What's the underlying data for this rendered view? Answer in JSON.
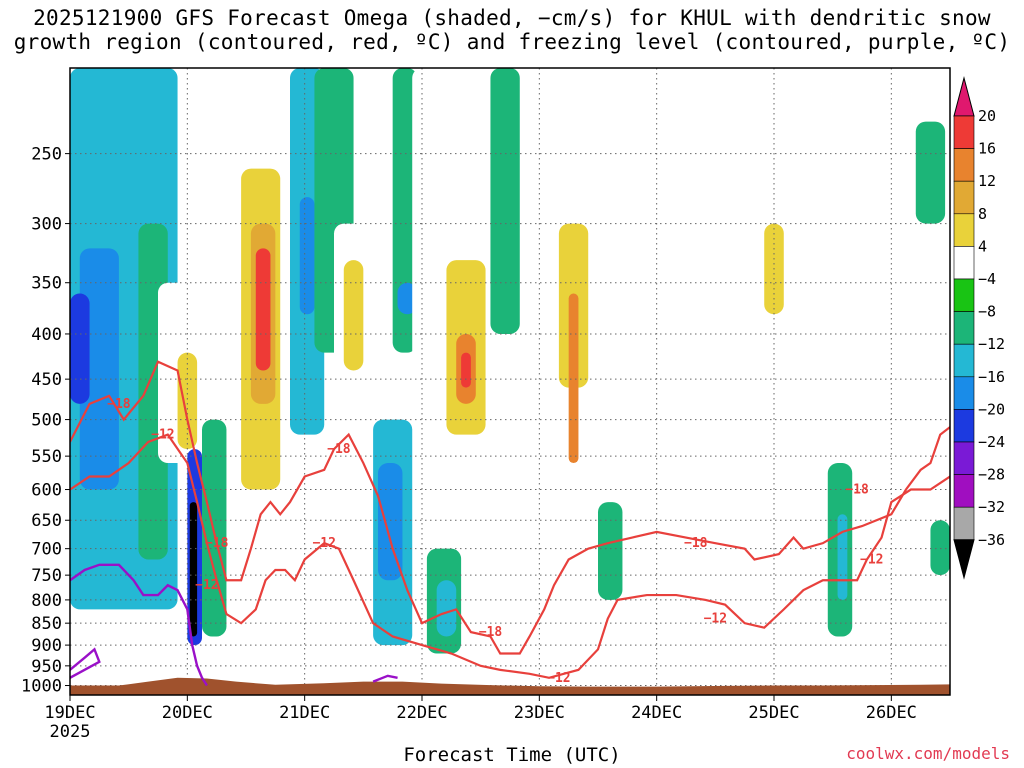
{
  "title": {
    "line1": "2025121900 GFS Forecast Omega (shaded, −cm/s) for KHUL with dendritic snow",
    "line2": "growth region (contoured, red, ºC) and freezing level (contoured, purple, ºC)"
  },
  "credit": "coolwx.com/models",
  "colors": {
    "contour_red": "#e8403c",
    "contour_purple": "#9a10c8",
    "terrain": "#a0522d"
  },
  "chart_data": {
    "type": "heatmap",
    "title": "2025121900 GFS Forecast Omega (shaded, −cm/s) for KHUL with dendritic snow growth region (contoured, red, ºC) and freezing level (contoured, purple, ºC)",
    "xlabel": "Forecast Time (UTC)",
    "ylabel": "",
    "x_ticks": [
      {
        "label": "19DEC",
        "sublabel": "2025",
        "hour": 0
      },
      {
        "label": "20DEC",
        "hour": 24
      },
      {
        "label": "21DEC",
        "hour": 48
      },
      {
        "label": "22DEC",
        "hour": 72
      },
      {
        "label": "23DEC",
        "hour": 96
      },
      {
        "label": "24DEC",
        "hour": 120
      },
      {
        "label": "25DEC",
        "hour": 144
      },
      {
        "label": "26DEC",
        "hour": 168
      }
    ],
    "xlim": [
      0,
      180
    ],
    "y_ticks": [
      "250",
      "300",
      "350",
      "400",
      "450",
      "500",
      "550",
      "600",
      "650",
      "700",
      "750",
      "800",
      "850",
      "900",
      "950",
      "1000"
    ],
    "ylim": [
      1025,
      200
    ],
    "colorbar": {
      "labels": [
        "20",
        "16",
        "12",
        "8",
        "4",
        "−4",
        "−8",
        "−12",
        "−16",
        "−20",
        "−24",
        "−28",
        "−32",
        "−36"
      ],
      "colors": [
        "#e0186e",
        "#ee3a36",
        "#e8832e",
        "#e1a934",
        "#e9d23a",
        "#ffffff",
        "#19c414",
        "#1cb578",
        "#24b8d4",
        "#1a8ce8",
        "#1c3ae0",
        "#7a1ad6",
        "#a00ec0",
        "#a8a8a8",
        "#000000"
      ]
    },
    "contour_labels": [
      {
        "text": "−18"
      },
      {
        "text": "−12"
      },
      {
        "text": "−18"
      },
      {
        "text": "−12"
      },
      {
        "text": "−18"
      },
      {
        "text": "−12"
      },
      {
        "text": "−18"
      },
      {
        "text": "−12"
      },
      {
        "text": "−18"
      },
      {
        "text": "−12"
      },
      {
        "text": "−18"
      },
      {
        "text": "−12"
      }
    ],
    "omega_regions": [
      {
        "h0": 0,
        "h1": 22,
        "p0": 200,
        "p1": 820,
        "val": -12
      },
      {
        "h0": 2,
        "h1": 10,
        "p0": 320,
        "p1": 600,
        "val": -16
      },
      {
        "h0": 0,
        "h1": 4,
        "p0": 360,
        "p1": 480,
        "val": -20
      },
      {
        "h0": 14,
        "h1": 20,
        "p0": 300,
        "p1": 720,
        "val": -8
      },
      {
        "h0": 18,
        "h1": 26,
        "p0": 350,
        "p1": 560,
        "val": 4
      },
      {
        "h0": 22,
        "h1": 26,
        "p0": 420,
        "p1": 540,
        "val": 8
      },
      {
        "h0": 24,
        "h1": 27,
        "p0": 540,
        "p1": 900,
        "val": -20
      },
      {
        "h0": 24.5,
        "h1": 26,
        "p0": 620,
        "p1": 880,
        "val": -36
      },
      {
        "h0": 27,
        "h1": 32,
        "p0": 500,
        "p1": 880,
        "val": -8
      },
      {
        "h0": 30,
        "h1": 34,
        "p0": 200,
        "p1": 300,
        "val": 4
      },
      {
        "h0": 33,
        "h1": 45,
        "p0": 200,
        "p1": 700,
        "val": 4
      },
      {
        "h0": 35,
        "h1": 43,
        "p0": 260,
        "p1": 600,
        "val": 8
      },
      {
        "h0": 37,
        "h1": 42,
        "p0": 300,
        "p1": 480,
        "val": 12
      },
      {
        "h0": 38,
        "h1": 41,
        "p0": 320,
        "p1": 440,
        "val": 20
      },
      {
        "h0": 45,
        "h1": 52,
        "p0": 200,
        "p1": 520,
        "val": -12
      },
      {
        "h0": 47,
        "h1": 50,
        "p0": 280,
        "p1": 380,
        "val": -16
      },
      {
        "h0": 50,
        "h1": 58,
        "p0": 200,
        "p1": 420,
        "val": -8
      },
      {
        "h0": 54,
        "h1": 62,
        "p0": 300,
        "p1": 500,
        "val": 4
      },
      {
        "h0": 56,
        "h1": 60,
        "p0": 330,
        "p1": 440,
        "val": 8
      },
      {
        "h0": 62,
        "h1": 70,
        "p0": 500,
        "p1": 900,
        "val": -12
      },
      {
        "h0": 63,
        "h1": 68,
        "p0": 560,
        "p1": 760,
        "val": -16
      },
      {
        "h0": 66,
        "h1": 71,
        "p0": 200,
        "p1": 420,
        "val": -8
      },
      {
        "h0": 67,
        "h1": 71,
        "p0": 350,
        "p1": 380,
        "val": -16
      },
      {
        "h0": 70,
        "h1": 76,
        "p0": 200,
        "p1": 500,
        "val": 4
      },
      {
        "h0": 76,
        "h1": 86,
        "p0": 260,
        "p1": 600,
        "val": 4
      },
      {
        "h0": 77,
        "h1": 85,
        "p0": 330,
        "p1": 520,
        "val": 8
      },
      {
        "h0": 79,
        "h1": 83,
        "p0": 400,
        "p1": 480,
        "val": 16
      },
      {
        "h0": 80,
        "h1": 82,
        "p0": 420,
        "p1": 460,
        "val": 20
      },
      {
        "h0": 73,
        "h1": 80,
        "p0": 700,
        "p1": 920,
        "val": -8
      },
      {
        "h0": 75,
        "h1": 79,
        "p0": 760,
        "p1": 880,
        "val": -12
      },
      {
        "h0": 86,
        "h1": 92,
        "p0": 200,
        "p1": 400,
        "val": -8
      },
      {
        "h0": 98,
        "h1": 108,
        "p0": 230,
        "p1": 560,
        "val": 4
      },
      {
        "h0": 100,
        "h1": 106,
        "p0": 300,
        "p1": 460,
        "val": 8
      },
      {
        "h0": 102,
        "h1": 104,
        "p0": 360,
        "p1": 560,
        "val": 16
      },
      {
        "h0": 108,
        "h1": 113,
        "p0": 620,
        "p1": 800,
        "val": -8
      },
      {
        "h0": 140,
        "h1": 148,
        "p0": 280,
        "p1": 520,
        "val": 4
      },
      {
        "h0": 142,
        "h1": 146,
        "p0": 300,
        "p1": 380,
        "val": 8
      },
      {
        "h0": 155,
        "h1": 160,
        "p0": 560,
        "p1": 880,
        "val": -8
      },
      {
        "h0": 157,
        "h1": 159,
        "p0": 640,
        "p1": 800,
        "val": -12
      },
      {
        "h0": 162,
        "h1": 166,
        "p0": 550,
        "p1": 700,
        "val": 4
      },
      {
        "h0": 173,
        "h1": 179,
        "p0": 230,
        "p1": 300,
        "val": -8
      },
      {
        "h0": 176,
        "h1": 180,
        "p0": 650,
        "p1": 750,
        "val": -8
      }
    ],
    "contours": [
      {
        "color": "red",
        "level": -18,
        "points": [
          [
            0,
            530
          ],
          [
            4,
            480
          ],
          [
            8,
            470
          ],
          [
            11,
            500
          ],
          [
            15,
            470
          ],
          [
            18,
            430
          ],
          [
            22,
            440
          ],
          [
            24,
            500
          ],
          [
            26,
            560
          ],
          [
            28,
            620
          ],
          [
            30,
            690
          ],
          [
            32,
            760
          ],
          [
            35,
            760
          ],
          [
            37,
            700
          ],
          [
            39,
            640
          ],
          [
            41,
            620
          ],
          [
            43,
            640
          ],
          [
            45,
            620
          ],
          [
            48,
            580
          ],
          [
            52,
            570
          ],
          [
            54,
            540
          ],
          [
            57,
            520
          ],
          [
            60,
            560
          ],
          [
            63,
            610
          ],
          [
            66,
            700
          ],
          [
            69,
            780
          ],
          [
            72,
            850
          ],
          [
            76,
            830
          ],
          [
            79,
            820
          ],
          [
            82,
            870
          ],
          [
            86,
            880
          ],
          [
            88,
            920
          ],
          [
            92,
            920
          ],
          [
            94,
            880
          ],
          [
            97,
            820
          ],
          [
            99,
            770
          ],
          [
            102,
            720
          ],
          [
            106,
            700
          ],
          [
            110,
            690
          ],
          [
            115,
            680
          ],
          [
            120,
            670
          ],
          [
            126,
            680
          ],
          [
            132,
            690
          ],
          [
            138,
            700
          ],
          [
            140,
            720
          ],
          [
            145,
            710
          ],
          [
            148,
            680
          ],
          [
            150,
            700
          ],
          [
            154,
            690
          ],
          [
            158,
            670
          ],
          [
            162,
            660
          ],
          [
            168,
            640
          ],
          [
            171,
            600
          ],
          [
            174,
            570
          ],
          [
            176,
            560
          ],
          [
            178,
            520
          ],
          [
            180,
            510
          ]
        ]
      },
      {
        "color": "red",
        "level": -12,
        "points": [
          [
            0,
            600
          ],
          [
            4,
            580
          ],
          [
            8,
            580
          ],
          [
            12,
            560
          ],
          [
            16,
            530
          ],
          [
            20,
            520
          ],
          [
            24,
            560
          ],
          [
            26,
            620
          ],
          [
            28,
            690
          ],
          [
            30,
            760
          ],
          [
            32,
            830
          ],
          [
            35,
            850
          ],
          [
            38,
            820
          ],
          [
            40,
            760
          ],
          [
            42,
            740
          ],
          [
            44,
            740
          ],
          [
            46,
            760
          ],
          [
            48,
            720
          ],
          [
            52,
            690
          ],
          [
            55,
            700
          ],
          [
            58,
            760
          ],
          [
            62,
            850
          ],
          [
            66,
            880
          ],
          [
            72,
            900
          ],
          [
            78,
            920
          ],
          [
            84,
            950
          ],
          [
            88,
            960
          ],
          [
            94,
            970
          ],
          [
            98,
            980
          ],
          [
            104,
            960
          ],
          [
            108,
            910
          ],
          [
            110,
            840
          ],
          [
            112,
            800
          ],
          [
            118,
            790
          ],
          [
            124,
            790
          ],
          [
            130,
            800
          ],
          [
            134,
            810
          ],
          [
            138,
            850
          ],
          [
            142,
            860
          ],
          [
            146,
            820
          ],
          [
            150,
            780
          ],
          [
            154,
            760
          ],
          [
            158,
            760
          ],
          [
            161,
            760
          ],
          [
            163,
            720
          ],
          [
            166,
            680
          ],
          [
            168,
            620
          ],
          [
            172,
            600
          ],
          [
            176,
            600
          ],
          [
            180,
            580
          ]
        ]
      }
    ],
    "freezing_level": [
      {
        "points": [
          [
            0,
            760
          ],
          [
            3,
            740
          ],
          [
            6,
            730
          ],
          [
            10,
            730
          ],
          [
            13,
            760
          ],
          [
            15,
            790
          ],
          [
            18,
            790
          ],
          [
            20,
            770
          ],
          [
            22,
            780
          ],
          [
            24,
            820
          ],
          [
            25,
            900
          ],
          [
            26,
            950
          ],
          [
            27,
            980
          ],
          [
            28,
            1000
          ]
        ]
      },
      {
        "points": [
          [
            0,
            960
          ],
          [
            3,
            930
          ],
          [
            5,
            910
          ],
          [
            6,
            940
          ],
          [
            3,
            960
          ],
          [
            0,
            980
          ]
        ]
      },
      {
        "points": [
          [
            62,
            990
          ],
          [
            65,
            975
          ],
          [
            67,
            980
          ]
        ]
      }
    ],
    "terrain": [
      [
        0,
        1000
      ],
      [
        10,
        1000
      ],
      [
        16,
        990
      ],
      [
        22,
        980
      ],
      [
        28,
        982
      ],
      [
        34,
        990
      ],
      [
        42,
        998
      ],
      [
        52,
        994
      ],
      [
        60,
        990
      ],
      [
        68,
        990
      ],
      [
        76,
        995
      ],
      [
        86,
        999
      ],
      [
        96,
        1002
      ],
      [
        106,
        1003
      ],
      [
        120,
        1003
      ],
      [
        134,
        1001
      ],
      [
        144,
        1000
      ],
      [
        154,
        1000
      ],
      [
        164,
        999
      ],
      [
        174,
        998
      ],
      [
        180,
        997
      ]
    ]
  }
}
